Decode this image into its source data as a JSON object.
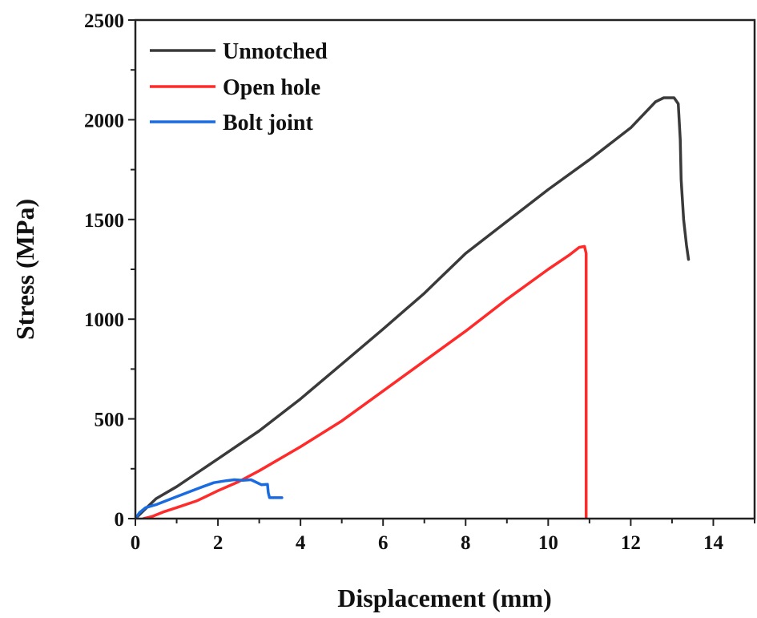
{
  "chart_data": {
    "type": "line",
    "title": "",
    "xlabel": "Displacement (mm)",
    "ylabel": "Stress (MPa)",
    "xlim": [
      0,
      15
    ],
    "ylim": [
      0,
      2500
    ],
    "x_ticks": [
      0,
      2,
      4,
      6,
      8,
      10,
      12,
      14
    ],
    "x_tick_labels": [
      "0",
      "2",
      "4",
      "6",
      "8",
      "10",
      "12",
      "14"
    ],
    "y_ticks": [
      0,
      500,
      1000,
      1500,
      2000,
      2500
    ],
    "y_tick_labels": [
      "0",
      "500",
      "1000",
      "1500",
      "2000",
      "2500"
    ],
    "grid": false,
    "legend_position": "top-left",
    "series": [
      {
        "name": "Unnotched",
        "color": "#3a3a3a",
        "points": [
          [
            0,
            0
          ],
          [
            0.2,
            40
          ],
          [
            0.5,
            100
          ],
          [
            1,
            160
          ],
          [
            2,
            300
          ],
          [
            3,
            440
          ],
          [
            4,
            600
          ],
          [
            5,
            775
          ],
          [
            6,
            950
          ],
          [
            7,
            1130
          ],
          [
            7.3,
            1190
          ],
          [
            8,
            1330
          ],
          [
            9,
            1490
          ],
          [
            10,
            1650
          ],
          [
            11,
            1800
          ],
          [
            12,
            1960
          ],
          [
            12.6,
            2090
          ],
          [
            12.8,
            2110
          ],
          [
            13.05,
            2110
          ],
          [
            13.15,
            2080
          ],
          [
            13.2,
            1900
          ],
          [
            13.22,
            1700
          ],
          [
            13.28,
            1500
          ],
          [
            13.35,
            1370
          ],
          [
            13.4,
            1300
          ]
        ]
      },
      {
        "name": "Open hole",
        "color": "#ff2a2a",
        "points": [
          [
            0.2,
            0
          ],
          [
            0.4,
            10
          ],
          [
            0.7,
            35
          ],
          [
            1,
            55
          ],
          [
            1.5,
            90
          ],
          [
            2,
            140
          ],
          [
            2.5,
            185
          ],
          [
            3,
            240
          ],
          [
            4,
            360
          ],
          [
            5,
            490
          ],
          [
            6,
            640
          ],
          [
            7,
            790
          ],
          [
            8,
            940
          ],
          [
            9,
            1100
          ],
          [
            10,
            1250
          ],
          [
            10.5,
            1320
          ],
          [
            10.75,
            1360
          ],
          [
            10.88,
            1365
          ],
          [
            10.92,
            1330
          ],
          [
            10.92,
            1000
          ],
          [
            10.92,
            500
          ],
          [
            10.92,
            0
          ]
        ]
      },
      {
        "name": "Bolt joint",
        "color": "#1a6be0",
        "points": [
          [
            0,
            0
          ],
          [
            0.1,
            30
          ],
          [
            0.25,
            55
          ],
          [
            0.5,
            70
          ],
          [
            1,
            110
          ],
          [
            1.5,
            150
          ],
          [
            1.9,
            180
          ],
          [
            2.2,
            190
          ],
          [
            2.4,
            195
          ],
          [
            2.6,
            192
          ],
          [
            2.8,
            195
          ],
          [
            2.95,
            180
          ],
          [
            3.05,
            170
          ],
          [
            3.2,
            172
          ],
          [
            3.22,
            130
          ],
          [
            3.25,
            105
          ],
          [
            3.55,
            105
          ]
        ]
      }
    ]
  }
}
